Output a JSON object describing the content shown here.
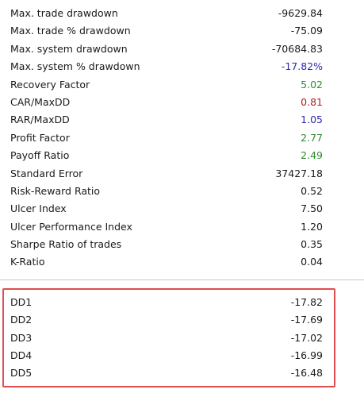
{
  "stats": [
    {
      "label": "Max. trade drawdown",
      "value": "-9629.84",
      "color": "#1a1a1a"
    },
    {
      "label": "Max. trade % drawdown",
      "value": "-75.09",
      "color": "#1a1a1a"
    },
    {
      "label": "Max. system drawdown",
      "value": "-70684.83",
      "color": "#1a1a1a"
    },
    {
      "label": "Max. system % drawdown",
      "value": "-17.82%",
      "color": "#2b2bb0"
    },
    {
      "label": "Recovery Factor",
      "value": "5.02",
      "color": "#2e8b2e"
    },
    {
      "label": "CAR/MaxDD",
      "value": "0.81",
      "color": "#b02020"
    },
    {
      "label": "RAR/MaxDD",
      "value": "1.05",
      "color": "#2b2bb0"
    },
    {
      "label": "Profit Factor",
      "value": "2.77",
      "color": "#2e8b2e"
    },
    {
      "label": "Payoff Ratio",
      "value": "2.49",
      "color": "#2e8b2e"
    },
    {
      "label": "Standard Error",
      "value": "37427.18",
      "color": "#1a1a1a"
    },
    {
      "label": "Risk-Reward Ratio",
      "value": "0.52",
      "color": "#1a1a1a"
    },
    {
      "label": "Ulcer Index",
      "value": "7.50",
      "color": "#1a1a1a"
    },
    {
      "label": "Ulcer Performance Index",
      "value": "1.20",
      "color": "#1a1a1a"
    },
    {
      "label": "Sharpe Ratio of trades",
      "value": "0.35",
      "color": "#1a1a1a"
    },
    {
      "label": "K-Ratio",
      "value": "0.04",
      "color": "#1a1a1a"
    }
  ],
  "drawdowns": [
    {
      "label": "DD1",
      "value": "-17.82"
    },
    {
      "label": "DD2",
      "value": "-17.69"
    },
    {
      "label": "DD3",
      "value": "-17.02"
    },
    {
      "label": "DD4",
      "value": "-16.99"
    },
    {
      "label": "DD5",
      "value": "-16.48"
    }
  ],
  "colors": {
    "highlight_border": "#e14d4d",
    "divider": "#c9c9c9"
  }
}
